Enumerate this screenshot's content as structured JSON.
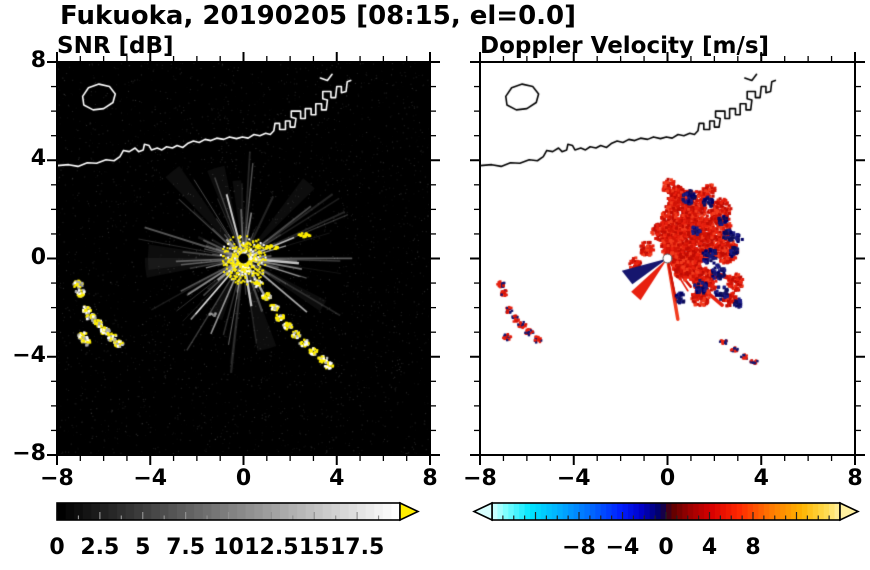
{
  "title": "Fukuoka, 20190205 [08:15, el=0.0]",
  "panels": [
    {
      "id": "snr",
      "title": "SNR [dB]",
      "background": "#000000",
      "coast_color": "#ffffff"
    },
    {
      "id": "vel",
      "title": "Doppler Velocity [m/s]",
      "background": "#ffffff",
      "coast_color": "#000000"
    }
  ],
  "axes": {
    "range": [
      -8,
      8
    ],
    "x_tick_values": [
      -8,
      -4,
      0,
      4,
      8
    ],
    "x_tick_labels": [
      "−8",
      "−4",
      "0",
      "4",
      "8"
    ],
    "y_tick_values": [
      8,
      4,
      0,
      -4,
      -8
    ],
    "y_tick_labels": [
      "8",
      "4",
      "0",
      "−4",
      "−8"
    ],
    "minor_tick_step": 1
  },
  "palette": {
    "snr_strong": "#ffee00",
    "snr_weak_gray": "#aaaaaa",
    "vel_positive": [
      "#e8200f",
      "#d21407",
      "#f23b1e",
      "#c00c04"
    ],
    "vel_negative": [
      "#16166e",
      "#0d0d5a",
      "#1c1c85",
      "#000066"
    ]
  },
  "colorbars": [
    {
      "id": "snr",
      "orientation": "horizontal",
      "range": [
        0,
        20
      ],
      "label_values": [
        0,
        2.5,
        5,
        7.5,
        10,
        12.5,
        15,
        17.5
      ],
      "labels": [
        "0",
        "2.5",
        "5",
        "7.5",
        "10",
        "12.5",
        "15",
        "17.5"
      ],
      "style": "grayscale",
      "over_arrow_color": "#ffee00"
    },
    {
      "id": "vel",
      "orientation": "horizontal",
      "range": [
        -16,
        16
      ],
      "label_values": [
        -8,
        -4,
        0,
        4,
        8
      ],
      "labels": [
        "−8",
        "−4",
        "0",
        "4",
        "8"
      ],
      "style": "velocity",
      "under_arrow_color": "#d8ffff",
      "over_arrow_color": "#fff0a0",
      "stops": [
        [
          0,
          "#d8ffff"
        ],
        [
          0.04,
          "#7dffff"
        ],
        [
          0.11,
          "#00e6ff"
        ],
        [
          0.2,
          "#00aaff"
        ],
        [
          0.29,
          "#0064ff"
        ],
        [
          0.37,
          "#001eff"
        ],
        [
          0.43,
          "#0000c8"
        ],
        [
          0.485,
          "#000060"
        ],
        [
          0.515,
          "#5a0000"
        ],
        [
          0.57,
          "#a00000"
        ],
        [
          0.63,
          "#d80000"
        ],
        [
          0.71,
          "#ff2800"
        ],
        [
          0.8,
          "#ff7800"
        ],
        [
          0.89,
          "#ffb400"
        ],
        [
          0.96,
          "#ffdc50"
        ],
        [
          1,
          "#fff0a0"
        ]
      ]
    }
  ],
  "coastline": {
    "description": "Hakata Bay coastline across upper third of both panels; island near (-6.2,6.6); jagged harbor piers climbing NE from (1.4,5.4) to (4.6,7.25)",
    "segments": [
      [
        [
          -8,
          3.78
        ],
        [
          -7.5,
          3.82
        ],
        [
          -7.1,
          3.75
        ],
        [
          -6.7,
          3.9
        ],
        [
          -6.3,
          3.88
        ],
        [
          -5.9,
          4.02
        ],
        [
          -5.55,
          3.98
        ],
        [
          -5.3,
          4.15
        ],
        [
          -5.15,
          4.4
        ],
        [
          -4.9,
          4.35
        ],
        [
          -4.65,
          4.5
        ],
        [
          -4.5,
          4.35
        ],
        [
          -4.3,
          4.42
        ],
        [
          -4.25,
          4.65
        ],
        [
          -4.05,
          4.6
        ],
        [
          -3.95,
          4.42
        ],
        [
          -3.7,
          4.5
        ],
        [
          -3.5,
          4.42
        ],
        [
          -3.3,
          4.55
        ],
        [
          -3.05,
          4.5
        ],
        [
          -2.85,
          4.6
        ],
        [
          -2.6,
          4.52
        ],
        [
          -2.4,
          4.68
        ],
        [
          -2.15,
          4.78
        ],
        [
          -1.9,
          4.72
        ],
        [
          -1.65,
          4.85
        ],
        [
          -1.4,
          4.8
        ],
        [
          -1.15,
          4.9
        ],
        [
          -0.85,
          4.85
        ],
        [
          -0.6,
          4.95
        ],
        [
          -0.3,
          4.88
        ],
        [
          -0.05,
          4.95
        ],
        [
          0.2,
          4.9
        ],
        [
          0.45,
          5.05
        ],
        [
          0.7,
          5.0
        ],
        [
          0.95,
          5.1
        ],
        [
          1.15,
          5.05
        ],
        [
          1.3,
          5.2
        ],
        [
          1.35,
          5.5
        ],
        [
          1.55,
          5.5
        ],
        [
          1.55,
          5.25
        ],
        [
          1.8,
          5.25
        ],
        [
          1.8,
          5.6
        ],
        [
          2.0,
          5.6
        ],
        [
          2.0,
          5.35
        ],
        [
          2.2,
          5.35
        ],
        [
          2.25,
          5.7
        ],
        [
          2.05,
          5.75
        ],
        [
          2.05,
          6.0
        ],
        [
          2.45,
          6.0
        ],
        [
          2.45,
          5.7
        ],
        [
          2.65,
          5.7
        ],
        [
          2.65,
          6.1
        ],
        [
          2.9,
          6.1
        ],
        [
          2.9,
          5.85
        ],
        [
          3.1,
          5.85
        ],
        [
          3.1,
          6.3
        ],
        [
          3.35,
          6.3
        ],
        [
          3.35,
          6.05
        ],
        [
          3.55,
          6.05
        ],
        [
          3.6,
          6.45
        ],
        [
          3.4,
          6.5
        ],
        [
          3.4,
          6.8
        ],
        [
          3.75,
          6.8
        ],
        [
          3.75,
          6.55
        ],
        [
          3.95,
          6.55
        ],
        [
          4.0,
          7.0
        ],
        [
          4.2,
          7.0
        ],
        [
          4.2,
          6.75
        ],
        [
          4.4,
          6.8
        ],
        [
          4.45,
          7.2
        ],
        [
          4.6,
          7.25
        ]
      ],
      [
        [
          -6.85,
          6.25
        ],
        [
          -6.45,
          6.05
        ],
        [
          -6.0,
          6.1
        ],
        [
          -5.6,
          6.35
        ],
        [
          -5.5,
          6.7
        ],
        [
          -5.75,
          7.0
        ],
        [
          -6.2,
          7.1
        ],
        [
          -6.65,
          6.95
        ],
        [
          -6.9,
          6.6
        ],
        [
          -6.85,
          6.25
        ]
      ],
      [
        [
          3.3,
          7.35
        ],
        [
          3.6,
          7.25
        ],
        [
          3.8,
          7.5
        ]
      ]
    ]
  },
  "chart_data": [
    {
      "type": "heatmap",
      "title": "SNR [dB]",
      "xlim": [
        -8,
        8
      ],
      "ylim": [
        -8,
        8
      ],
      "x_ticks": [
        -8,
        -4,
        0,
        4,
        8
      ],
      "y_ticks": [
        8,
        4,
        0,
        -4,
        -8
      ],
      "grid": false,
      "background_value": "no echo (0 dB, black)",
      "colorbar": {
        "orientation": "horizontal",
        "range": [
          0,
          20
        ],
        "tick_labels": [
          0,
          2.5,
          5,
          7.5,
          10,
          12.5,
          15,
          17.5
        ],
        "colormap": "black-to-white grayscale",
        "over_color": "#ffee00"
      },
      "features": [
        {
          "name": "radar-site",
          "x": 0,
          "y": 0
        },
        {
          "name": "ground-clutter-spokes",
          "description": "faint white radial spokes from radar site out to ~4.5 km in all directions"
        },
        {
          "name": "strong-clutter-ring",
          "radius": [
            0.2,
            1.0
          ],
          "value": ">= 17.5 dB (yellow speckle ring around site)"
        },
        {
          "name": "echo-arc-southeast",
          "value": ">= 15 dB (yellow dashes)",
          "points": [
            [
              0.6,
              -1.0
            ],
            [
              0.95,
              -1.5
            ],
            [
              1.25,
              -1.95
            ],
            [
              1.5,
              -2.35
            ],
            [
              1.85,
              -2.7
            ],
            [
              2.2,
              -3.05
            ],
            [
              2.55,
              -3.4
            ],
            [
              2.95,
              -3.75
            ],
            [
              3.35,
              -4.05
            ],
            [
              3.6,
              -4.3
            ]
          ]
        },
        {
          "name": "echo-clusters-southwest",
          "value": "8-18 dB (gray/white/yellow)",
          "points": [
            [
              -7.15,
              -1.0
            ],
            [
              -7.05,
              -1.35
            ],
            [
              -6.8,
              -2.05
            ],
            [
              -6.6,
              -2.35
            ],
            [
              -6.3,
              -2.6
            ],
            [
              -6.0,
              -2.9
            ],
            [
              -5.7,
              -3.15
            ],
            [
              -5.4,
              -3.4
            ],
            [
              -6.95,
              -3.1
            ],
            [
              -6.8,
              -3.35
            ]
          ]
        },
        {
          "name": "small-echo-northeast",
          "value": ">= 15 dB",
          "points": [
            [
              2.55,
              1.0
            ],
            [
              1.15,
              0.5
            ]
          ]
        }
      ],
      "coastline": "drawn in white"
    },
    {
      "type": "heatmap",
      "title": "Doppler Velocity [m/s]",
      "xlim": [
        -8,
        8
      ],
      "ylim": [
        -8,
        8
      ],
      "x_ticks": [
        -8,
        -4,
        0,
        4,
        8
      ],
      "y_ticks": [
        8,
        4,
        0,
        -4,
        -8
      ],
      "grid": false,
      "background_value": "no data (white)",
      "colorbar": {
        "orientation": "horizontal",
        "range": [
          -16,
          16
        ],
        "tick_labels": [
          -8,
          -4,
          0,
          4,
          8
        ],
        "colormap": "cyan-blue-navy (negative) | dark red-red-orange-yellow (positive)"
      },
      "features": [
        {
          "name": "radar-site",
          "x": 0,
          "y": 0
        },
        {
          "name": "main-echo-region",
          "extent": [
            [
              -2.3,
              -2.0
            ],
            [
              3.1,
              3.1
            ]
          ],
          "description": "spiky echo mass NE/E of site, mostly positive (red ~2-8 m/s) with embedded negative (navy) patches on E and S flanks",
          "red_kernels": [
            [
              1.15,
              0.85,
              0.95
            ],
            [
              0.45,
              1.65,
              0.8
            ],
            [
              1.95,
              1.35,
              0.7
            ],
            [
              0.75,
              -0.25,
              0.6
            ],
            [
              1.55,
              -0.85,
              0.55
            ],
            [
              0.15,
              0.55,
              0.5
            ],
            [
              2.45,
              0.35,
              0.5
            ],
            [
              1.05,
              2.3,
              0.55
            ],
            [
              0.35,
              2.6,
              0.4
            ],
            [
              2.2,
              2.05,
              0.45
            ],
            [
              -0.35,
              1.15,
              0.38
            ],
            [
              2.85,
              -0.9,
              0.35
            ],
            [
              1.35,
              -1.5,
              0.4
            ],
            [
              2.6,
              -1.6,
              0.3
            ],
            [
              -0.95,
              0.45,
              0.3
            ],
            [
              -1.45,
              -0.15,
              0.25
            ],
            [
              0.0,
              3.0,
              0.3
            ],
            [
              1.7,
              2.8,
              0.3
            ]
          ],
          "navy_kernels": [
            [
              1.75,
              0.15,
              0.33
            ],
            [
              2.1,
              -0.5,
              0.3
            ],
            [
              1.35,
              -1.1,
              0.28
            ],
            [
              2.55,
              1.0,
              0.26
            ],
            [
              2.25,
              -1.35,
              0.28
            ],
            [
              0.85,
              2.55,
              0.28
            ],
            [
              1.65,
              2.35,
              0.24
            ],
            [
              2.8,
              0.3,
              0.24
            ],
            [
              0.5,
              -1.55,
              0.22
            ],
            [
              2.95,
              -1.75,
              0.2
            ],
            [
              1.15,
              1.2,
              0.18
            ],
            [
              2.3,
              1.6,
              0.2
            ],
            [
              3.0,
              0.9,
              0.18
            ]
          ]
        },
        {
          "name": "negative-wedge",
          "apex": [
            0,
            0
          ],
          "p1": [
            -1.95,
            -0.5
          ],
          "p2": [
            -1.5,
            -1.05
          ],
          "description": "navy wedge from site toward WSW"
        },
        {
          "name": "positive-wedge",
          "apex": [
            0,
            0
          ],
          "p1": [
            -1.55,
            -1.35
          ],
          "p2": [
            -1.15,
            -1.7
          ],
          "description": "red wedge from site toward SW"
        },
        {
          "name": "echo-clusters-southwest",
          "description": "small red arcs with navy flecks",
          "points": [
            [
              -7.15,
              -1.0
            ],
            [
              -7.05,
              -1.35
            ],
            [
              -6.8,
              -2.05
            ],
            [
              -6.55,
              -2.4
            ],
            [
              -6.25,
              -2.65
            ],
            [
              -5.95,
              -2.95
            ],
            [
              -5.6,
              -3.25
            ],
            [
              -6.9,
              -3.15
            ]
          ]
        },
        {
          "name": "echo-arc-southeast",
          "description": "small red/navy dashes",
          "points": [
            [
              2.35,
              -3.35
            ],
            [
              2.8,
              -3.65
            ],
            [
              3.25,
              -3.95
            ],
            [
              3.65,
              -4.15
            ]
          ]
        }
      ],
      "coastline": "drawn in black"
    }
  ]
}
